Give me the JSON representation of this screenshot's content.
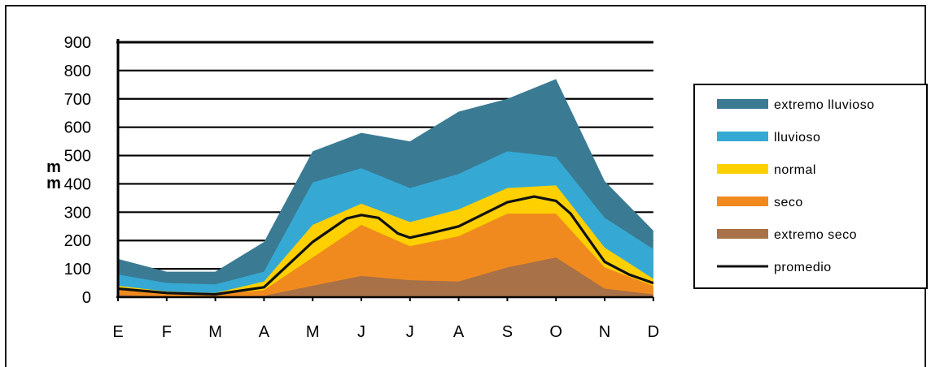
{
  "chart_data": {
    "type": "area",
    "ylabel": "mm",
    "ylim": [
      0,
      900
    ],
    "yticks": [
      "900",
      "800",
      "700",
      "600",
      "500",
      "400",
      "300",
      "200",
      "100",
      "0"
    ],
    "ytick_values": [
      900,
      800,
      700,
      600,
      500,
      400,
      300,
      200,
      100,
      0
    ],
    "grid": true,
    "legend_position": "right",
    "categories": [
      "E",
      "F",
      "M",
      "A",
      "M",
      "J",
      "J",
      "A",
      "S",
      "O",
      "N",
      "D"
    ],
    "series": [
      {
        "name": "extremo lluvioso",
        "color": "#3a7b93",
        "values": [
          135,
          90,
          90,
          195,
          515,
          580,
          550,
          655,
          700,
          770,
          410,
          235
        ]
      },
      {
        "name": "lluvioso",
        "color": "#35a9d4",
        "values": [
          80,
          50,
          45,
          90,
          405,
          455,
          385,
          435,
          515,
          495,
          280,
          170
        ]
      },
      {
        "name": "normal",
        "color": "#ffd000",
        "values": [
          40,
          20,
          15,
          55,
          255,
          330,
          265,
          310,
          385,
          395,
          175,
          65
        ]
      },
      {
        "name": "seco",
        "color": "#f08a1e",
        "values": [
          25,
          10,
          10,
          25,
          140,
          255,
          180,
          215,
          295,
          295,
          105,
          40
        ]
      },
      {
        "name": "extremo seco",
        "color": "#a87148",
        "values": [
          8,
          3,
          3,
          5,
          40,
          75,
          60,
          55,
          105,
          140,
          30,
          10
        ]
      }
    ],
    "line_series": {
      "name": "promedio",
      "color": "#111111",
      "points": [
        [
          0,
          30
        ],
        [
          1,
          15
        ],
        [
          2,
          10
        ],
        [
          3,
          35
        ],
        [
          4,
          195
        ],
        [
          4.7,
          278
        ],
        [
          5,
          290
        ],
        [
          5.35,
          280
        ],
        [
          5.75,
          225
        ],
        [
          6,
          210
        ],
        [
          6.4,
          225
        ],
        [
          7,
          250
        ],
        [
          8,
          335
        ],
        [
          8.55,
          355
        ],
        [
          9,
          340
        ],
        [
          9.3,
          295
        ],
        [
          10,
          125
        ],
        [
          10.5,
          80
        ],
        [
          11,
          50
        ]
      ]
    }
  }
}
